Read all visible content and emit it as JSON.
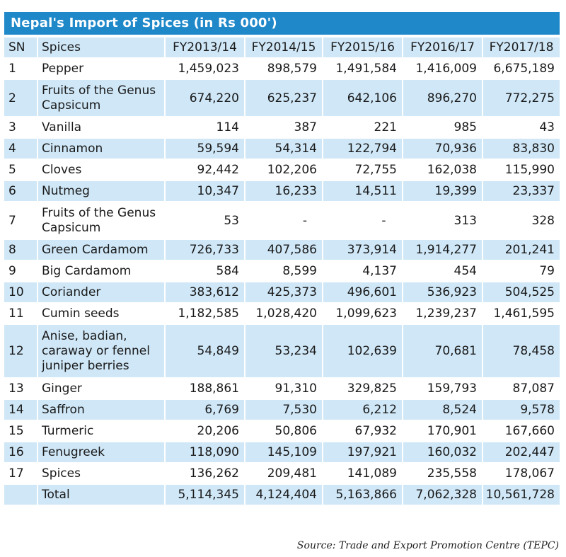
{
  "title": "Nepal's Import of Spices (in Rs 000')",
  "source": "Source: Trade and Export Promotion Centre (TEPC)",
  "chart_data": {
    "type": "table",
    "columns": [
      "SN",
      "Spices",
      "FY2013/14",
      "FY2014/15",
      "FY2015/16",
      "FY2016/17",
      "FY2017/18"
    ],
    "rows": [
      {
        "sn": "1",
        "name": "Pepper",
        "values": [
          "1,459,023",
          "898,579",
          "1,491,584",
          "1,416,009",
          "6,675,189"
        ]
      },
      {
        "sn": "2",
        "name": "Fruits of the Genus Capsicum",
        "values": [
          "674,220",
          "625,237",
          "642,106",
          "896,270",
          "772,275"
        ]
      },
      {
        "sn": "3",
        "name": "Vanilla",
        "values": [
          "114",
          "387",
          "221",
          "985",
          "43"
        ]
      },
      {
        "sn": "4",
        "name": "Cinnamon",
        "values": [
          "59,594",
          "54,314",
          "122,794",
          "70,936",
          "83,830"
        ]
      },
      {
        "sn": "5",
        "name": "Cloves",
        "values": [
          "92,442",
          "102,206",
          "72,755",
          "162,038",
          "115,990"
        ]
      },
      {
        "sn": "6",
        "name": "Nutmeg",
        "values": [
          "10,347",
          "16,233",
          "14,511",
          "19,399",
          "23,337"
        ]
      },
      {
        "sn": "7",
        "name": "Fruits of the Genus Capsicum",
        "values": [
          "53",
          "-",
          "-",
          "313",
          "328"
        ]
      },
      {
        "sn": "8",
        "name": "Green Cardamom",
        "values": [
          "726,733",
          "407,586",
          "373,914",
          "1,914,277",
          "201,241"
        ]
      },
      {
        "sn": "9",
        "name": "Big Cardamom",
        "values": [
          "584",
          "8,599",
          "4,137",
          "454",
          "79"
        ]
      },
      {
        "sn": "10",
        "name": "Coriander",
        "values": [
          "383,612",
          "425,373",
          "496,601",
          "536,923",
          "504,525"
        ]
      },
      {
        "sn": "11",
        "name": "Cumin seeds",
        "values": [
          "1,182,585",
          "1,028,420",
          "1,099,623",
          "1,239,237",
          "1,461,595"
        ]
      },
      {
        "sn": "12",
        "name": "Anise, badian, caraway or fennel juniper berries",
        "values": [
          "54,849",
          "53,234",
          "102,639",
          "70,681",
          "78,458"
        ]
      },
      {
        "sn": "13",
        "name": "Ginger",
        "values": [
          "188,861",
          "91,310",
          "329,825",
          "159,793",
          "87,087"
        ]
      },
      {
        "sn": "14",
        "name": "Saffron",
        "values": [
          "6,769",
          "7,530",
          "6,212",
          "8,524",
          "9,578"
        ]
      },
      {
        "sn": "15",
        "name": "Turmeric",
        "values": [
          "20,206",
          "50,806",
          "67,932",
          "170,901",
          "167,660"
        ]
      },
      {
        "sn": "16",
        "name": "Fenugreek",
        "values": [
          "118,090",
          "145,109",
          "197,921",
          "160,032",
          "202,447"
        ]
      },
      {
        "sn": "17",
        "name": "Spices",
        "values": [
          "136,262",
          "209,481",
          "141,089",
          "235,558",
          "178,067"
        ]
      }
    ],
    "total": {
      "sn": "",
      "name": "Total",
      "values": [
        "5,114,345",
        "4,124,404",
        "5,163,866",
        "7,062,328",
        "10,561,728"
      ]
    }
  }
}
